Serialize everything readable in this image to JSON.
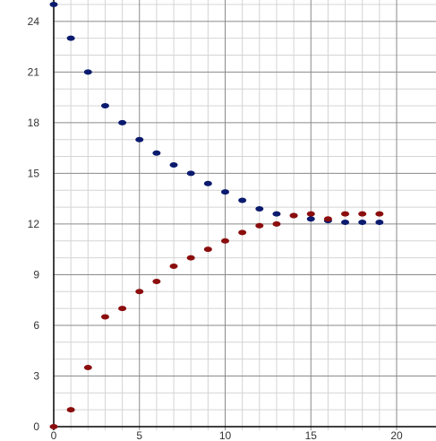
{
  "chart_data": {
    "type": "scatter",
    "title": "",
    "xlabel": "",
    "ylabel": "",
    "xlim": [
      0,
      20
    ],
    "ylim": [
      0,
      25
    ],
    "x_major_ticks": [
      0,
      5,
      10,
      15,
      20
    ],
    "x_tick_labels": [
      "0",
      "5",
      "10",
      "15",
      "20"
    ],
    "y_major_ticks": [
      0,
      3,
      6,
      9,
      12,
      15,
      18,
      21,
      24
    ],
    "y_tick_labels": [
      "0",
      "3",
      "6",
      "9",
      "12",
      "15",
      "18",
      "21",
      "24"
    ],
    "grid": true,
    "legend": "none",
    "series": [
      {
        "color": "#0a1a6e",
        "x": [
          0,
          1,
          2,
          3,
          4,
          5,
          6,
          7,
          8,
          9,
          10,
          11,
          12,
          13,
          14,
          15,
          16,
          17,
          18,
          19
        ],
        "y": [
          25,
          23,
          21,
          19,
          18,
          17,
          16.2,
          15.5,
          15,
          14.4,
          13.9,
          13.4,
          12.9,
          12.6,
          12.5,
          12.3,
          12.2,
          12.1,
          12.1,
          12.1
        ]
      },
      {
        "color": "#8b0d0d",
        "x": [
          0,
          1,
          2,
          3,
          4,
          5,
          6,
          7,
          8,
          9,
          10,
          11,
          12,
          13,
          14,
          15,
          16,
          17,
          18,
          19
        ],
        "y": [
          0,
          1,
          3.5,
          6.5,
          7,
          8,
          8.6,
          9.5,
          10,
          10.5,
          11,
          11.5,
          11.9,
          12,
          12.5,
          12.6,
          12.3,
          12.6,
          12.6,
          12.6
        ]
      }
    ]
  }
}
